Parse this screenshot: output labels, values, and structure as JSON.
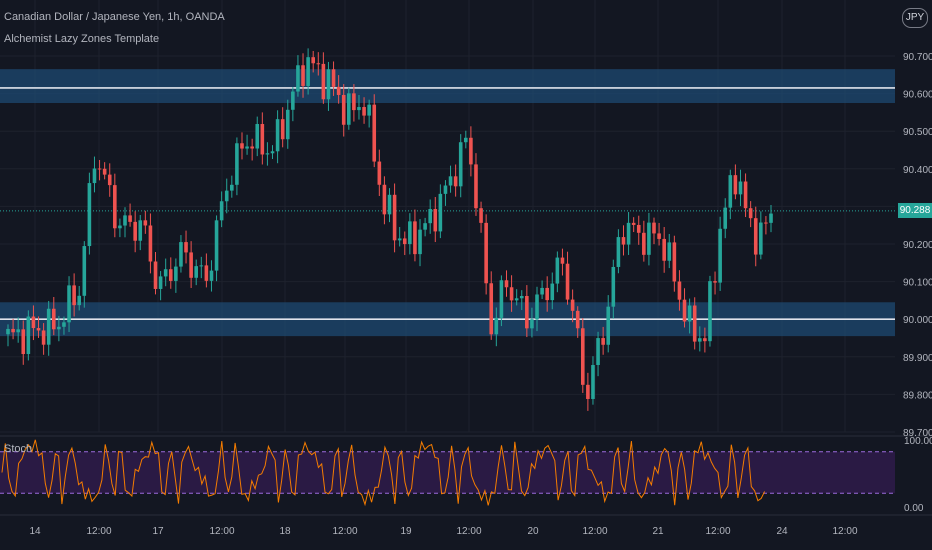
{
  "header": {
    "title": "Canadian Dollar / Japanese Yen, 1h, OANDA",
    "indicator": "Alchemist Lazy Zones Template",
    "currency_badge": "JPY",
    "last_price": "90.288"
  },
  "colors": {
    "background": "#131722",
    "grid": "#1e222d",
    "up": "#26a69a",
    "down": "#ef5350",
    "zone": "#1e4a72",
    "zone_line": "#e0e3eb",
    "stoch_band": "#2a1a44",
    "stoch_line": "#f57c00"
  },
  "chart_data": [
    {
      "type": "candlestick",
      "title": "Canadian Dollar / Japanese Yen, 1h, OANDA",
      "ylim": [
        89.7,
        90.75
      ],
      "y_ticks": [
        "90.700",
        "90.600",
        "90.500",
        "90.400",
        "90.300",
        "90.200",
        "90.100",
        "90.000",
        "89.900",
        "89.800",
        "89.700"
      ],
      "x_ticks": [
        "14",
        "12:00",
        "17",
        "12:00",
        "18",
        "12:00",
        "19",
        "12:00",
        "20",
        "12:00",
        "21",
        "12:00",
        "24",
        "12:00"
      ],
      "zones": [
        {
          "from": 90.575,
          "to": 90.665,
          "line": 90.615
        },
        {
          "from": 89.955,
          "to": 90.045,
          "line": 90.0
        }
      ],
      "last_price": 90.288,
      "candle_count": 151,
      "anchors": [
        [
          0,
          89.95
        ],
        [
          6,
          89.97
        ],
        [
          12,
          89.98
        ],
        [
          18,
          90.08
        ],
        [
          22,
          90.45
        ],
        [
          28,
          90.25
        ],
        [
          34,
          90.25
        ],
        [
          38,
          90.08
        ],
        [
          44,
          90.18
        ],
        [
          50,
          90.1
        ],
        [
          55,
          90.35
        ],
        [
          60,
          90.48
        ],
        [
          67,
          90.45
        ],
        [
          72,
          90.6
        ],
        [
          75,
          90.69
        ],
        [
          81,
          90.63
        ],
        [
          86,
          90.55
        ],
        [
          90,
          90.58
        ],
        [
          95,
          90.3
        ],
        [
          100,
          90.2
        ],
        [
          106,
          90.25
        ],
        [
          111,
          90.35
        ],
        [
          116,
          90.48
        ],
        [
          118,
          90.35
        ],
        [
          122,
          89.98
        ],
        [
          126,
          90.1
        ],
        [
          131,
          90.0
        ],
        [
          136,
          90.08
        ],
        [
          140,
          90.15
        ],
        [
          143,
          90.0
        ],
        [
          146,
          89.79
        ],
        [
          151,
          90.0
        ],
        [
          155,
          90.25
        ],
        [
          160,
          90.22
        ],
        [
          165,
          90.22
        ],
        [
          168,
          90.12
        ],
        [
          172,
          89.98
        ],
        [
          176,
          89.95
        ],
        [
          180,
          90.25
        ],
        [
          184,
          90.4
        ],
        [
          187,
          90.25
        ],
        [
          190,
          90.22
        ],
        [
          193,
          90.28
        ]
      ]
    },
    {
      "type": "line",
      "title": "Stoch",
      "ylim": [
        0,
        100
      ],
      "y_ticks": [
        "100.00",
        "0.00"
      ],
      "band": [
        20,
        80
      ]
    }
  ]
}
